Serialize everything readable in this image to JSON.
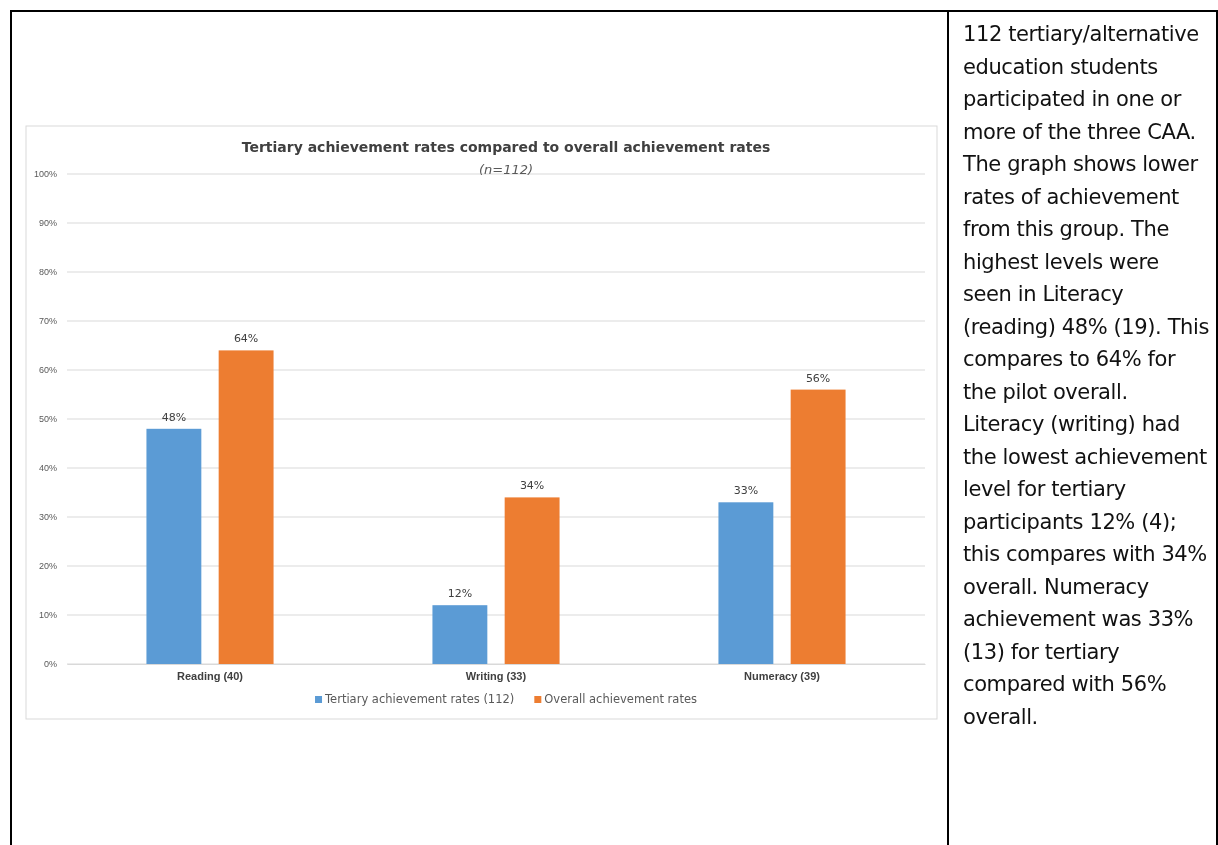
{
  "chart_data": {
    "type": "bar",
    "title": "Tertiary achievement rates compared to overall achievement rates",
    "subtitle": "(n=112)",
    "categories": [
      "Reading (40)",
      "Writing (33)",
      "Numeracy (39)"
    ],
    "series": [
      {
        "name": "Tertiary achievement rates (112)",
        "color": "#5b9bd5",
        "values": [
          48,
          12,
          33
        ],
        "value_labels": [
          "48%",
          "12%",
          "33%"
        ]
      },
      {
        "name": "Overall achievement rates",
        "color": "#ed7d31",
        "values": [
          64,
          34,
          56
        ],
        "value_labels": [
          "64%",
          "34%",
          "56%"
        ]
      }
    ],
    "ylim": [
      0,
      100
    ],
    "yticks": [
      {
        "value": 0,
        "label": "0%"
      },
      {
        "value": 10,
        "label": "10%"
      },
      {
        "value": 20,
        "label": "20%"
      },
      {
        "value": 30,
        "label": "30%"
      },
      {
        "value": 40,
        "label": "40%"
      },
      {
        "value": 50,
        "label": "50%"
      },
      {
        "value": 60,
        "label": "60%"
      },
      {
        "value": 70,
        "label": "70%"
      },
      {
        "value": 80,
        "label": "80%"
      },
      {
        "value": 90,
        "label": "90%"
      },
      {
        "value": 100,
        "label": "100%"
      }
    ],
    "grid": "y",
    "legend": "bottom",
    "annotations": [
      "112 tertiary/alternative education students participated in one or more of the three CAA. The graph shows lower rates of achievement from this group. The highest levels were seen in Literacy (reading) 48% (19). This compares to 64% for the pilot overall. Literacy (writing) had the lowest achievement level for tertiary participants 12% (4); this compares with 34% overall. Numeracy achievement was 33% (13) for tertiary compared with 56% overall."
    ]
  }
}
